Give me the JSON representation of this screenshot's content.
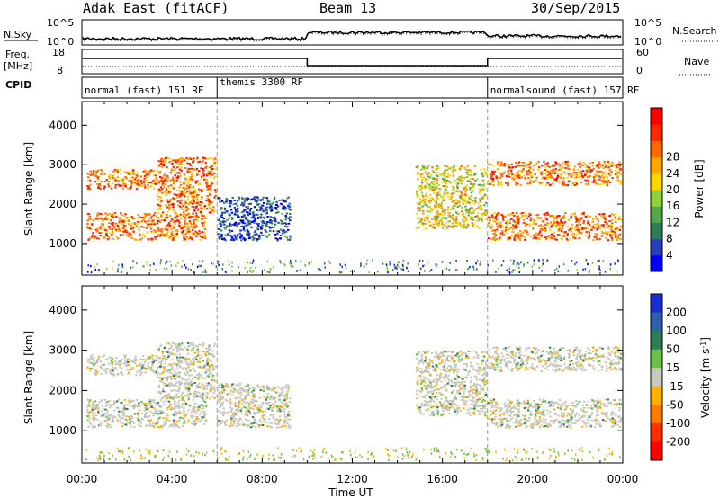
{
  "header": {
    "station": "Adak East (fitACF)",
    "beam": "Beam 13",
    "date": "30/Sep/2015"
  },
  "top_panels": {
    "nsky_label": "N.Sky",
    "nsearch_label": "N.Search",
    "noise_ticks": [
      "10^5",
      "10^0"
    ],
    "freq_label": "Freq.",
    "freq_unit": "[MHz]",
    "freq_ticks": [
      "18",
      "8"
    ],
    "nave_label": "Nave",
    "nave_ticks": [
      "60",
      "0"
    ],
    "cpid_label": "CPID"
  },
  "modes": [
    {
      "label": "normal (fast) 151 RF",
      "start_hour": 0,
      "end_hour": 6
    },
    {
      "label": "themis 3300 RF",
      "start_hour": 6,
      "end_hour": 18
    },
    {
      "label": "normalsound (fast) 157 RF",
      "start_hour": 18,
      "end_hour": 24
    }
  ],
  "chart_data": [
    {
      "type": "heatmap",
      "name": "power",
      "ylabel": "Slant Range [km]",
      "xlabel": "Time UT",
      "x_ticks": [
        "00:00",
        "04:00",
        "08:00",
        "12:00",
        "16:00",
        "20:00",
        "00:00"
      ],
      "xlim_hours": [
        0,
        24
      ],
      "y_ticks": [
        1000,
        2000,
        3000,
        4000
      ],
      "ylim": [
        200,
        4600
      ],
      "colorbar": {
        "label": "Power [dB]",
        "ticks": [
          "4",
          "8",
          "12",
          "16",
          "20",
          "24",
          "28"
        ],
        "colors": [
          "#0000ff",
          "#2a3fb5",
          "#2e7d55",
          "#55a84a",
          "#8fd13c",
          "#ffd700",
          "#ffa500",
          "#ff6a00",
          "#ff2a00",
          "#ff0000"
        ]
      },
      "echo_regions": [
        {
          "t0": 0.2,
          "t1": 3.3,
          "r0": 2400,
          "r1": 2900,
          "level": "high"
        },
        {
          "t0": 0.2,
          "t1": 5.5,
          "r0": 1100,
          "r1": 1800,
          "level": "high"
        },
        {
          "t0": 3.3,
          "t1": 5.9,
          "r0": 1800,
          "r1": 3200,
          "level": "high"
        },
        {
          "t0": 6.0,
          "t1": 9.2,
          "r0": 1100,
          "r1": 2200,
          "level": "low"
        },
        {
          "t0": 14.8,
          "t1": 17.9,
          "r0": 1400,
          "r1": 3000,
          "level": "mid"
        },
        {
          "t0": 18.0,
          "t1": 23.9,
          "r0": 2500,
          "r1": 3100,
          "level": "high"
        },
        {
          "t0": 18.0,
          "t1": 23.9,
          "r0": 1100,
          "r1": 1800,
          "level": "high"
        }
      ]
    },
    {
      "type": "heatmap",
      "name": "velocity",
      "ylabel": "Slant Range [km]",
      "xlabel": "Time UT",
      "x_ticks": [
        "00:00",
        "04:00",
        "08:00",
        "12:00",
        "16:00",
        "20:00",
        "00:00"
      ],
      "xlim_hours": [
        0,
        24
      ],
      "y_ticks": [
        1000,
        2000,
        3000,
        4000
      ],
      "ylim": [
        200,
        4600
      ],
      "colorbar": {
        "label": "Velocity [m s^-1]",
        "ticks": [
          "200",
          "100",
          "50",
          "15",
          "-15",
          "-50",
          "-100",
          "-200"
        ],
        "colors": [
          "#1a2fd0",
          "#2e5fa8",
          "#2e7d55",
          "#6cc04a",
          "#c8c8c0",
          "#ffb000",
          "#ff7a00",
          "#ff3000",
          "#ff0000"
        ]
      }
    }
  ]
}
